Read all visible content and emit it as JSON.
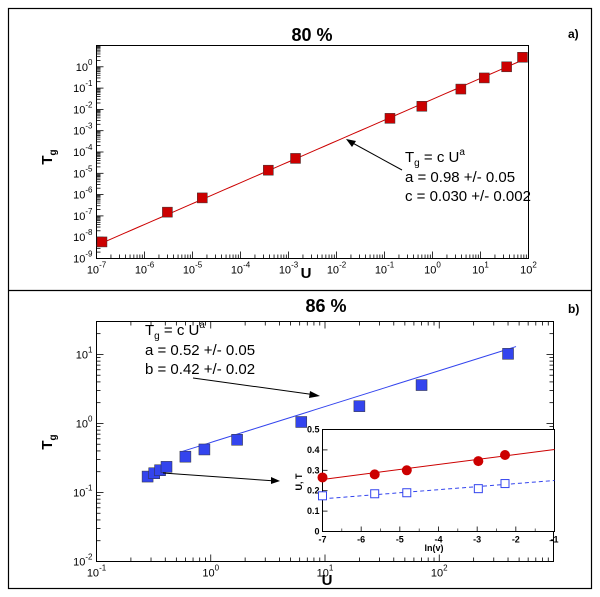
{
  "chart_data": [
    {
      "type": "scatter",
      "title": "80 %",
      "panel_tag": "a)",
      "xlabel": "U",
      "ylabel_base": "T",
      "ylabel_sub": "g",
      "xscale": "log",
      "yscale": "log",
      "xlim": [
        1e-07,
        100
      ],
      "ylim": [
        1e-09,
        10
      ],
      "x_ticks": [
        {
          "b": "10",
          "e": "-7"
        },
        {
          "b": "10",
          "e": "-6"
        },
        {
          "b": "10",
          "e": "-5"
        },
        {
          "b": "10",
          "e": "-4"
        },
        {
          "b": "10",
          "e": "-3"
        },
        {
          "b": "10",
          "e": "-2"
        },
        {
          "b": "10",
          "e": "-1"
        },
        {
          "b": "10",
          "e": "0"
        },
        {
          "b": "10",
          "e": "1"
        },
        {
          "b": "10",
          "e": "2"
        }
      ],
      "y_ticks": [
        {
          "b": "10",
          "e": "-9"
        },
        {
          "b": "10",
          "e": "-8"
        },
        {
          "b": "10",
          "e": "-7"
        },
        {
          "b": "10",
          "e": "-6"
        },
        {
          "b": "10",
          "e": "-5"
        },
        {
          "b": "10",
          "e": "-4"
        },
        {
          "b": "10",
          "e": "-3"
        },
        {
          "b": "10",
          "e": "-2"
        },
        {
          "b": "10",
          "e": "-1"
        },
        {
          "b": "10",
          "e": "0"
        }
      ],
      "series": [
        {
          "marker": "square-filled",
          "color": "#cc0000",
          "x": [
            1.3e-07,
            3e-06,
            1.6e-05,
            0.00038,
            0.0014,
            0.13,
            0.6,
            3.9,
            12,
            35,
            75
          ],
          "y": [
            6e-09,
            1.5e-07,
            7e-07,
            1.4e-05,
            5e-05,
            0.0038,
            0.014,
            0.09,
            0.3,
            1.0,
            2.8
          ]
        }
      ],
      "fit": {
        "color": "#cc0000",
        "c": 0.03,
        "a": 0.98,
        "x_range": [
          1e-07,
          80
        ]
      },
      "annotation": {
        "line1_base": "T",
        "line1_sub": "g",
        "line1_mid": " = c U",
        "line1_sup": "a",
        "line2": "a = 0.98 +/- 0.05",
        "line3": "c = 0.030 +/- 0.002"
      }
    },
    {
      "type": "scatter",
      "title": "86 %",
      "panel_tag": "b)",
      "xlabel": "U",
      "ylabel_base": "T",
      "ylabel_sub": "g",
      "xscale": "log",
      "yscale": "log",
      "xlim": [
        0.1,
        1000
      ],
      "ylim": [
        0.01,
        30
      ],
      "x_ticks": [
        {
          "b": "10",
          "e": "-1"
        },
        {
          "b": "10",
          "e": "0"
        },
        {
          "b": "10",
          "e": "1"
        },
        {
          "b": "10",
          "e": "2"
        }
      ],
      "y_ticks": [
        {
          "b": "10",
          "e": "-2"
        },
        {
          "b": "10",
          "e": "-1"
        },
        {
          "b": "10",
          "e": "0"
        },
        {
          "b": "10",
          "e": "1"
        }
      ],
      "series": [
        {
          "marker": "square-filled",
          "color": "#3344ee",
          "x": [
            0.28,
            0.32,
            0.36,
            0.41,
            0.6,
            0.88,
            1.7,
            6.2,
            20,
            70,
            400
          ],
          "y": [
            0.17,
            0.19,
            0.21,
            0.235,
            0.33,
            0.42,
            0.58,
            1.05,
            1.78,
            3.6,
            10.2
          ]
        }
      ],
      "fit": {
        "color": "#3344ee",
        "c": 0.53,
        "a": 0.52,
        "x_range": [
          0.55,
          470
        ]
      },
      "annotation": {
        "line1_base": "T",
        "line1_sub": "g",
        "line1_mid": " = c U",
        "line1_sup": "a",
        "line2": "a = 0.52 +/- 0.05",
        "line3": "b = 0.42 +/- 0.02"
      },
      "inset": {
        "type": "scatter",
        "xlabel": "ln(v)",
        "ylabel": "U, T",
        "xlim": [
          -7,
          -1
        ],
        "ylim": [
          0,
          0.5
        ],
        "x_ticks": [
          "-7",
          "-6",
          "-5",
          "-4",
          "-3",
          "-2",
          "-1"
        ],
        "y_ticks": [
          "0",
          "0.1",
          "0.2",
          "0.3",
          "0.4",
          "0.5"
        ],
        "series": [
          {
            "marker": "circle-filled",
            "color": "#cc0000",
            "x": [
              -7,
              -5.65,
              -4.82,
              -2.97,
              -2.28
            ],
            "y": [
              0.265,
              0.28,
              0.3,
              0.345,
              0.375
            ]
          },
          {
            "marker": "square-open",
            "color": "#3344ee",
            "x": [
              -7,
              -5.65,
              -4.82,
              -2.97,
              -2.28
            ],
            "y": [
              0.175,
              0.185,
              0.19,
              0.21,
              0.235
            ]
          }
        ],
        "fits": [
          {
            "color": "#cc0000",
            "dash": false,
            "x": [
              -7,
              -1
            ],
            "y": [
              0.255,
              0.402
            ]
          },
          {
            "color": "#3344ee",
            "dash": true,
            "x": [
              -7,
              -1
            ],
            "y": [
              0.16,
              0.25
            ]
          }
        ]
      }
    }
  ]
}
